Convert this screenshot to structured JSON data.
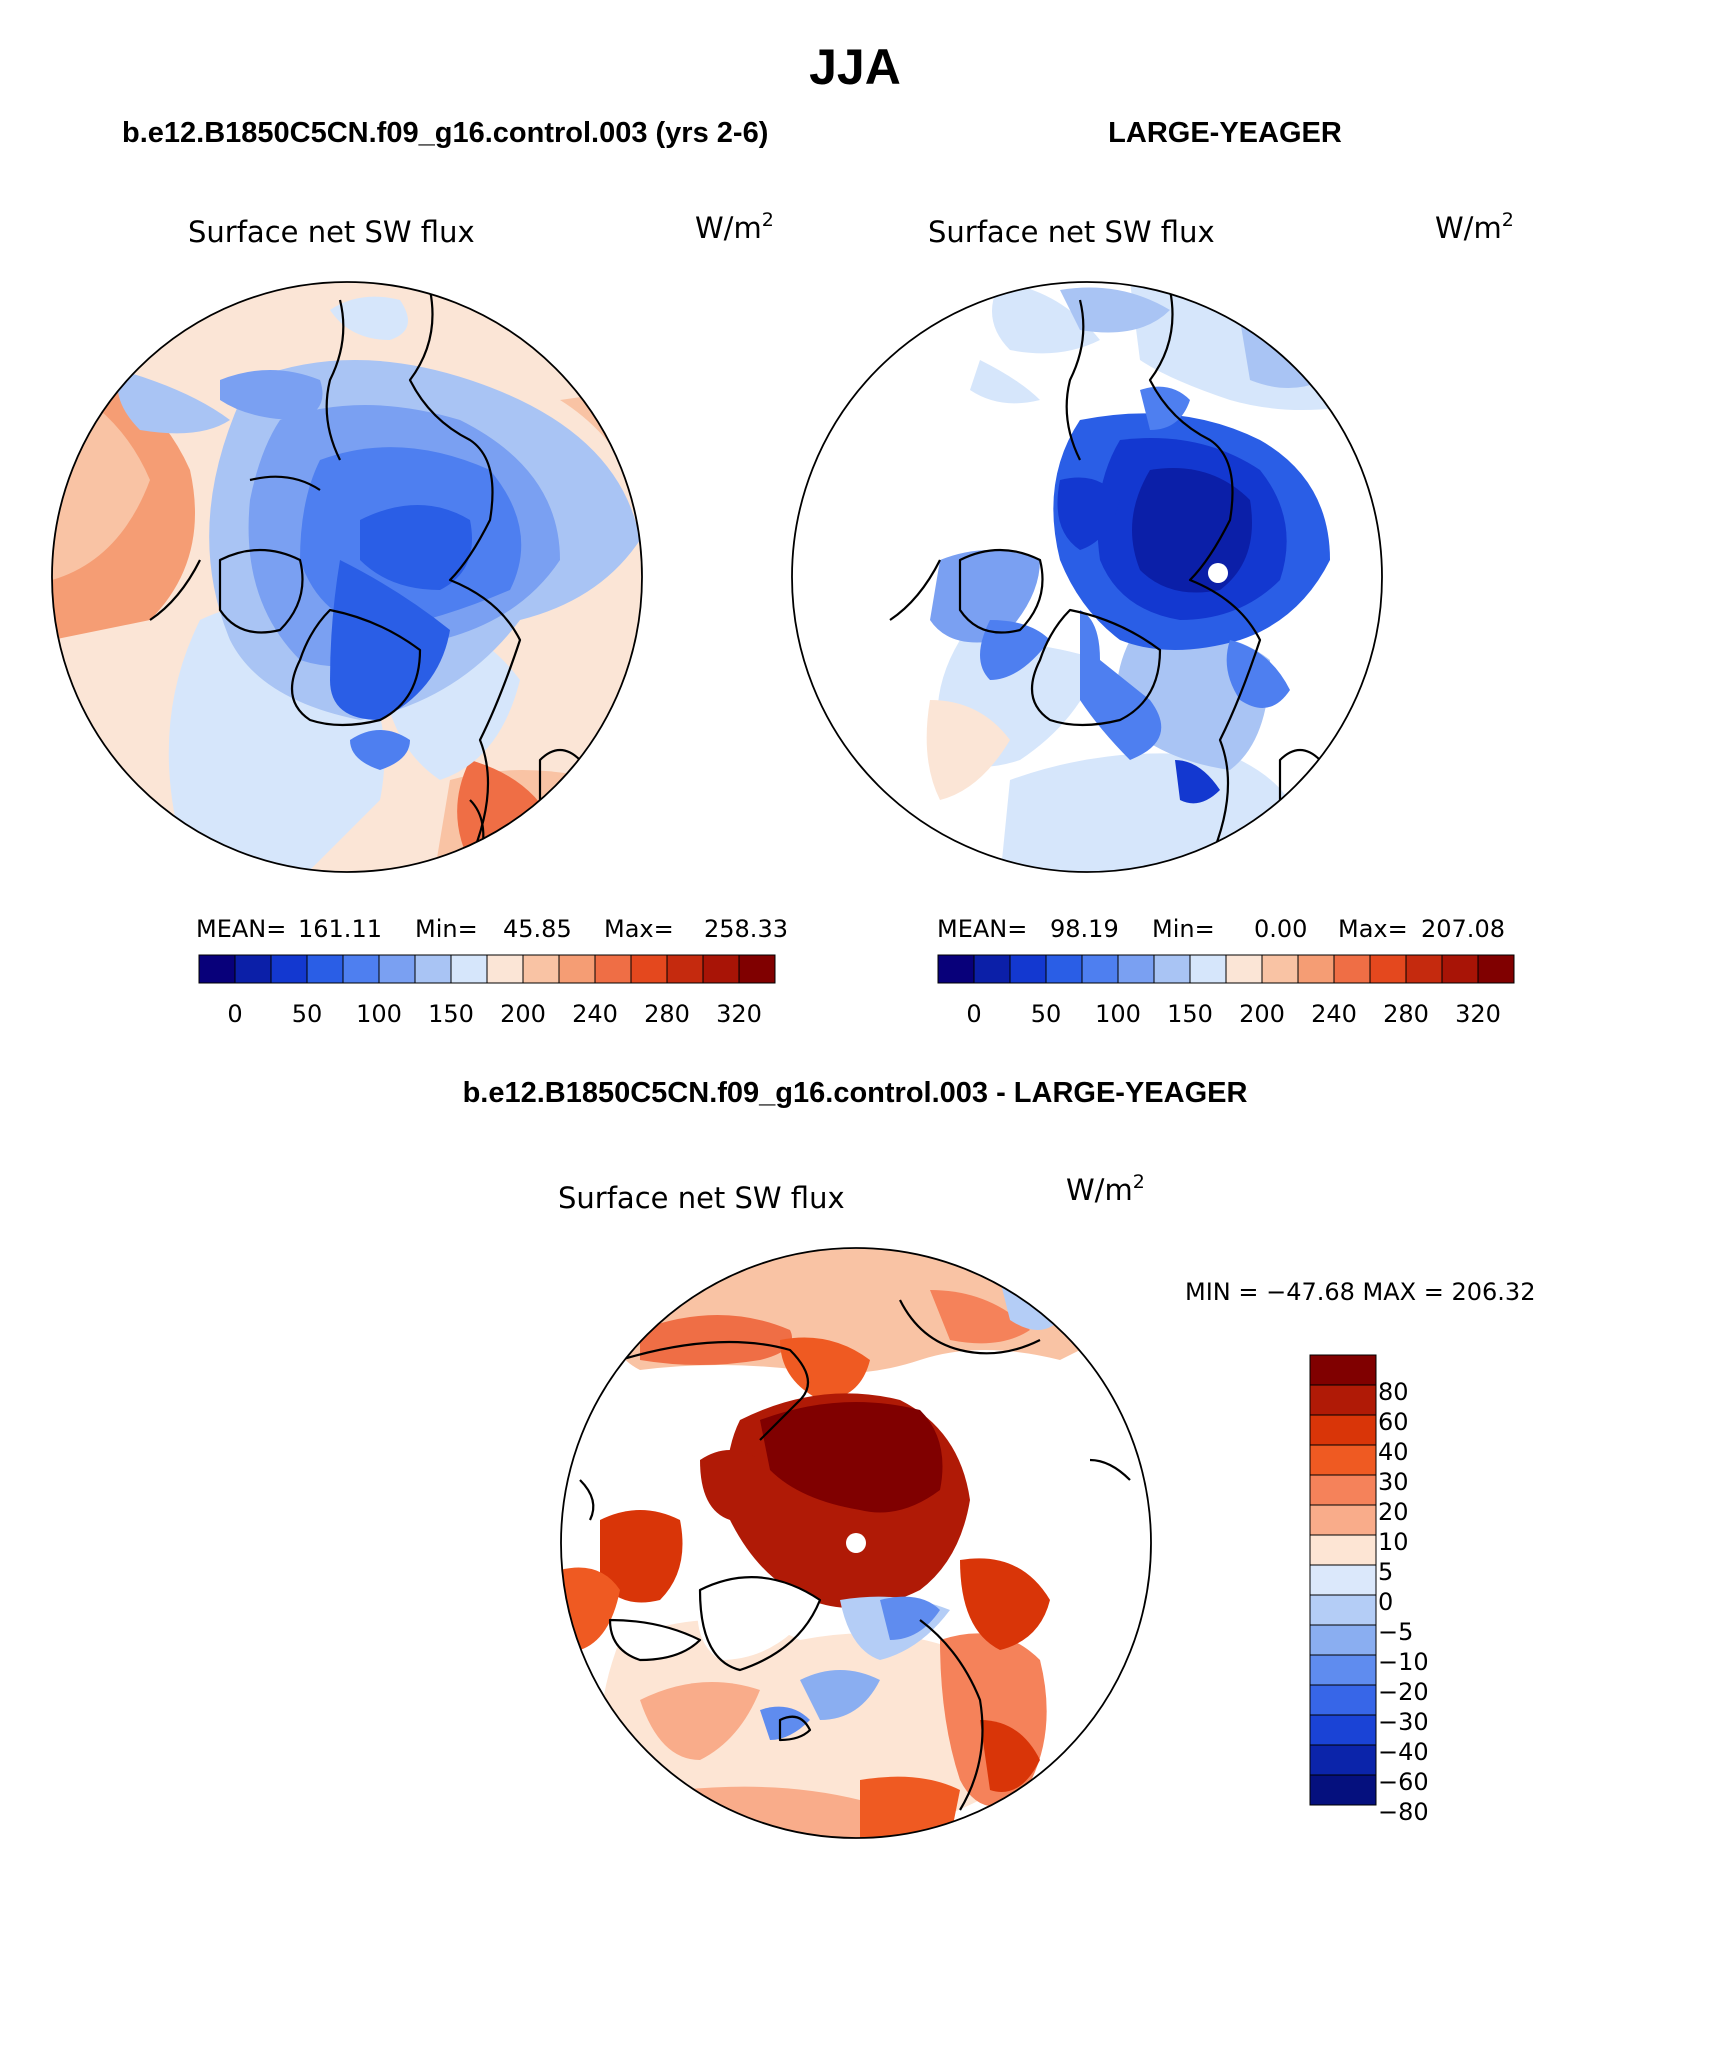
{
  "title": "JJA",
  "colors": {
    "seq": [
      "#08007a",
      "#0b1fa8",
      "#1338d0",
      "#2a5ee6",
      "#4e7ff0",
      "#7aa0f2",
      "#a9c4f4",
      "#d6e6fb",
      "#fbe5d6",
      "#f9c3a4",
      "#f59d74",
      "#ef6e45",
      "#e4481e",
      "#c52a0e",
      "#a81406",
      "#800000"
    ],
    "diff": [
      "#800000",
      "#b01a06",
      "#d93508",
      "#ef5a22",
      "#f5825a",
      "#f9ac8a",
      "#fde5d4",
      "#dbe8fb",
      "#b4cdf6",
      "#8aaef1",
      "#5f8cef",
      "#3766e8",
      "#1a43d6",
      "#0b24aa",
      "#05107e"
    ]
  },
  "panels": [
    {
      "title": "b.e12.B1850C5CN.f09_g16.control.003 (yrs 2-6)",
      "variable": "Surface net SW flux",
      "units": "W/m",
      "units_sup": "2",
      "stats": {
        "mean_label": "MEAN=",
        "mean": "161.11",
        "min_label": "Min=",
        "min": "45.85",
        "max_label": "Max=",
        "max": "258.33"
      },
      "colorbar_labels": [
        "0",
        "50",
        "100",
        "150",
        "200",
        "240",
        "280",
        "320"
      ]
    },
    {
      "title": "LARGE-YEAGER",
      "variable": "Surface net SW flux",
      "units": "W/m",
      "units_sup": "2",
      "stats": {
        "mean_label": "MEAN=",
        "mean": "98.19",
        "min_label": "Min=",
        "min": "0.00",
        "max_label": "Max=",
        "max": "207.08"
      },
      "colorbar_labels": [
        "0",
        "50",
        "100",
        "150",
        "200",
        "240",
        "280",
        "320"
      ]
    }
  ],
  "diff_panel": {
    "title": "b.e12.B1850C5CN.f09_g16.control.003 - LARGE-YEAGER",
    "variable": "Surface net SW flux",
    "units": "W/m",
    "units_sup": "2",
    "minmax": "MIN = −47.68 MAX = 206.32",
    "colorbar_labels": [
      "80",
      "60",
      "40",
      "30",
      "20",
      "10",
      "5",
      "0",
      "−5",
      "−10",
      "−20",
      "−30",
      "−40",
      "−60",
      "−80"
    ]
  }
}
